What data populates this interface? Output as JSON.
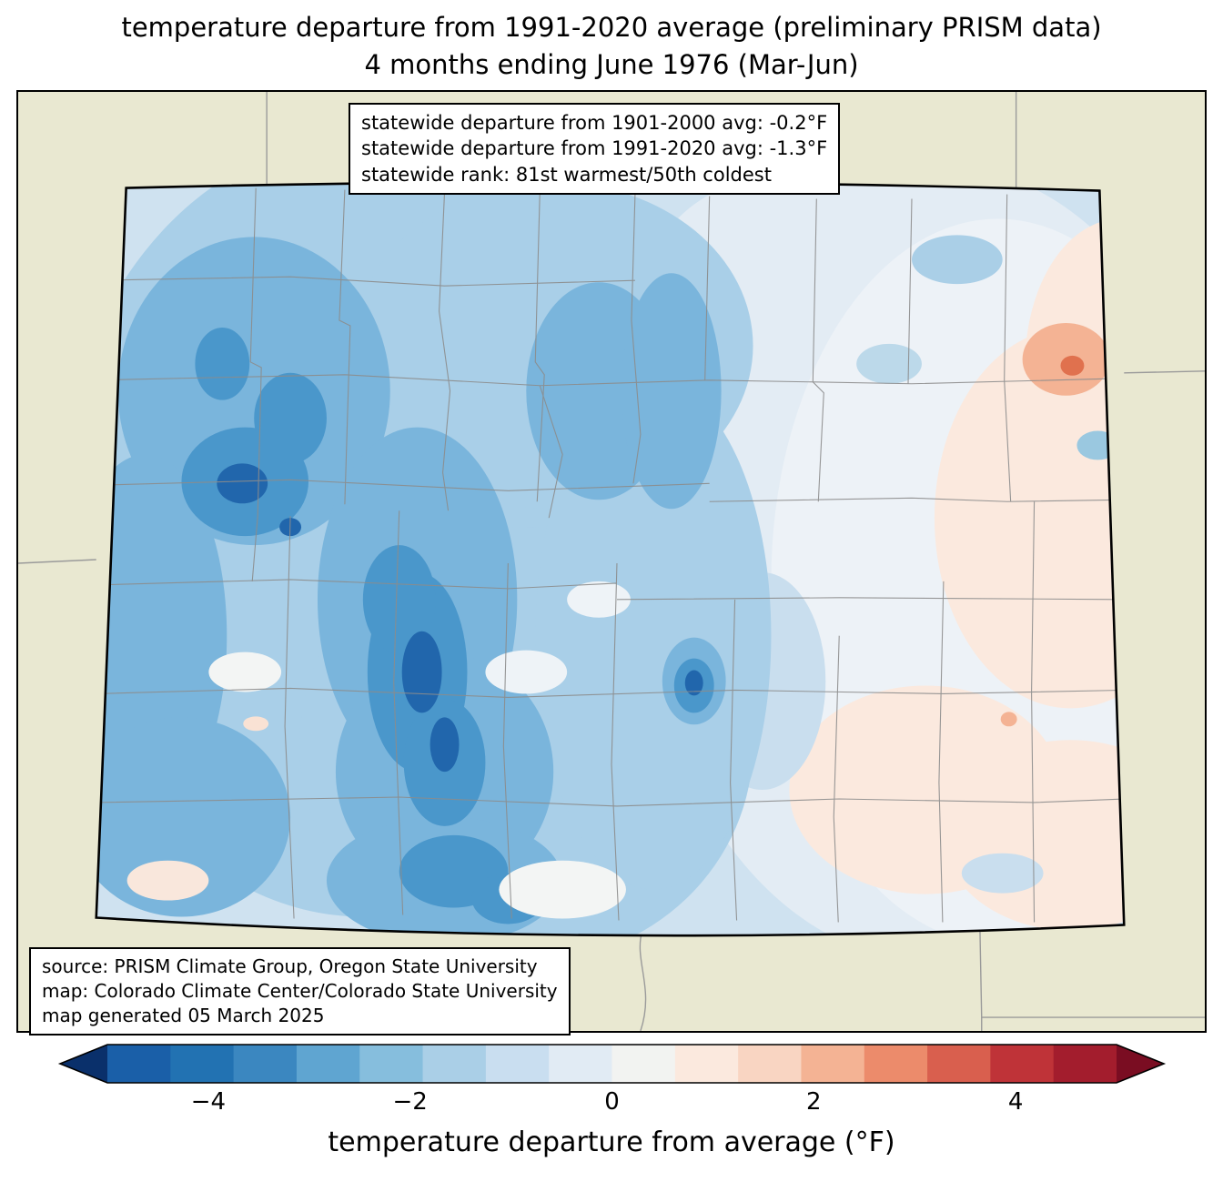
{
  "title": {
    "line1": "temperature departure from 1991-2020 average (preliminary PRISM data)",
    "line2": "4 months ending June 1976 (Mar-Jun)"
  },
  "stats_box": {
    "line1": "statewide departure from 1901-2000 avg: -0.2°F",
    "line2": "statewide departure from 1991-2020 avg: -1.3°F",
    "line3": "statewide rank: 81st warmest/50th coldest"
  },
  "source_box": {
    "line1": "source: PRISM Climate Group, Oregon State University",
    "line2": "map: Colorado Climate Center/Colorado State University",
    "line3": "map generated 05 March 2025"
  },
  "map": {
    "region": "Colorado",
    "surround_color": "#e9e8d1",
    "state_border_color": "#000000",
    "county_line_color": "#8c8c8c"
  },
  "colorbar": {
    "label": "temperature departure from average (°F)",
    "ticks": [
      "−4",
      "−2",
      "0",
      "2",
      "4"
    ],
    "tick_values": [
      -4,
      -2,
      0,
      2,
      4
    ],
    "range": [
      -5,
      5
    ],
    "left_arrow_color": "#0a306b",
    "right_arrow_color": "#7a0d22",
    "segments": [
      "#1a5fa8",
      "#2272b2",
      "#3b87c0",
      "#5fa5d1",
      "#86bedd",
      "#aacfe7",
      "#c9def0",
      "#e1ebf4",
      "#f2f3f1",
      "#fbe9de",
      "#f9d5c2",
      "#f4b394",
      "#ec8b6b",
      "#d95f4e",
      "#bf3338",
      "#a31d2d"
    ]
  }
}
